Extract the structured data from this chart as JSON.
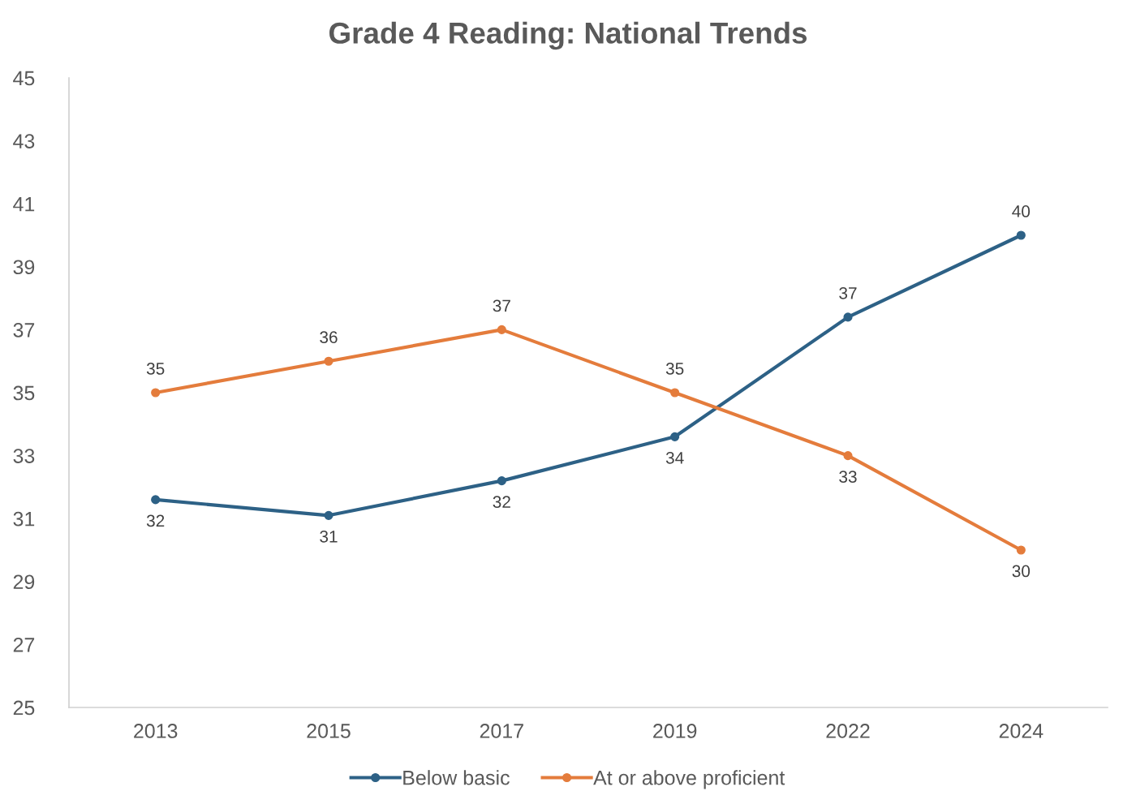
{
  "chart_data": {
    "type": "line",
    "title": "Grade 4 Reading: National Trends",
    "categories": [
      "2013",
      "2015",
      "2017",
      "2019",
      "2022",
      "2024"
    ],
    "series": [
      {
        "name": "Below basic",
        "color": "#2d6186",
        "values": [
          31.6,
          31.1,
          32.2,
          33.6,
          37.4,
          40.0
        ],
        "value_labels": [
          "32",
          "31",
          "32",
          "34",
          "37",
          "40"
        ]
      },
      {
        "name": "At or above proficient",
        "color": "#e47c3c",
        "values": [
          35,
          36,
          37,
          35,
          33,
          30
        ],
        "value_labels": [
          "35",
          "36",
          "37",
          "35",
          "33",
          "30"
        ]
      }
    ],
    "ylim": [
      25,
      45
    ],
    "yticks": [
      25,
      27,
      29,
      31,
      33,
      35,
      37,
      39,
      41,
      43,
      45
    ],
    "legend": "bottom",
    "marker": "circle",
    "line_style": "solid"
  }
}
